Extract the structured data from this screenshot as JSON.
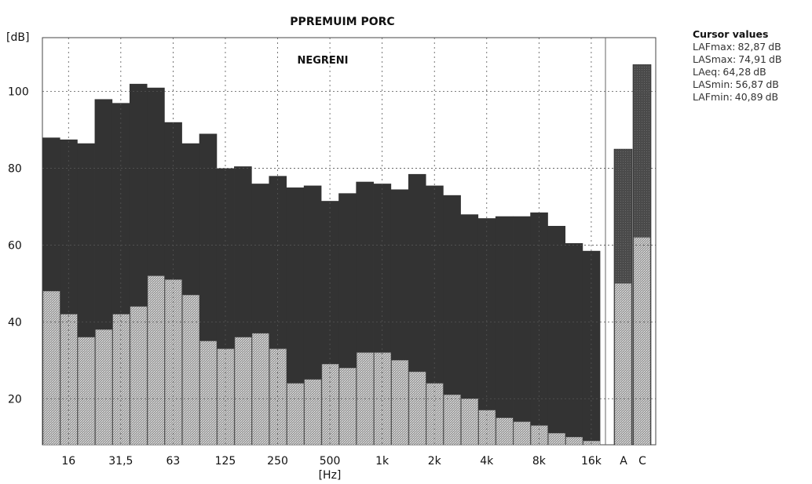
{
  "chart_data": {
    "type": "bar",
    "title": "PPREMUIM PORC",
    "subtitle": "NEGRENI",
    "ylabel": "[dB]",
    "xlabel": "[Hz]",
    "ylim": [
      8,
      110
    ],
    "yticks": [
      20,
      40,
      60,
      80,
      100
    ],
    "x_tick_labels": [
      "16",
      "31,5",
      "63",
      "125",
      "250",
      "500",
      "1k",
      "2k",
      "4k",
      "8k",
      "16k",
      "A",
      "C"
    ],
    "categories": [
      "12.5",
      "16",
      "20",
      "25",
      "31.5",
      "40",
      "50",
      "63",
      "80",
      "100",
      "125",
      "160",
      "200",
      "250",
      "315",
      "400",
      "500",
      "630",
      "800",
      "1k",
      "1.25k",
      "1.6k",
      "2k",
      "2.5k",
      "3.15k",
      "4k",
      "5k",
      "6.3k",
      "8k",
      "10k",
      "12.5k",
      "16k"
    ],
    "series": [
      {
        "values": [
          88,
          87.5,
          86.5,
          98,
          97,
          102,
          101,
          92,
          86.5,
          89,
          80,
          80.5,
          76,
          78,
          75,
          75.5,
          71.5,
          73.5,
          76.5,
          76,
          74.5,
          78.5,
          75.5,
          73,
          68,
          67,
          67.5,
          67.5,
          68.5,
          65,
          60.5,
          58.5
        ]
      },
      {
        "values": [
          48,
          42,
          36,
          38,
          42,
          44,
          52,
          51,
          47,
          35,
          33,
          36,
          37,
          33,
          24,
          25,
          29,
          28,
          32,
          32,
          30,
          27,
          24,
          21,
          20,
          17,
          15,
          14,
          13,
          11,
          10,
          9
        ]
      }
    ],
    "broadband": {
      "categories": [
        "A",
        "C"
      ],
      "series": [
        {
          "values": [
            85,
            107
          ]
        },
        {
          "values": [
            50,
            62
          ]
        }
      ]
    },
    "colors": {
      "upper": "#333333",
      "lower": "#b4b4b4",
      "grid": "#555555"
    }
  },
  "cursor": {
    "title": "Cursor values",
    "rows": [
      {
        "label": "LAFmax:",
        "value": "82,87",
        "unit": "dB"
      },
      {
        "label": "LASmax:",
        "value": "74,91",
        "unit": "dB"
      },
      {
        "label": "LAeq:",
        "value": "64,28",
        "unit": "dB"
      },
      {
        "label": "LASmin:",
        "value": "56,87",
        "unit": "dB"
      },
      {
        "label": "LAFmin:",
        "value": "40,89",
        "unit": "dB"
      }
    ]
  }
}
